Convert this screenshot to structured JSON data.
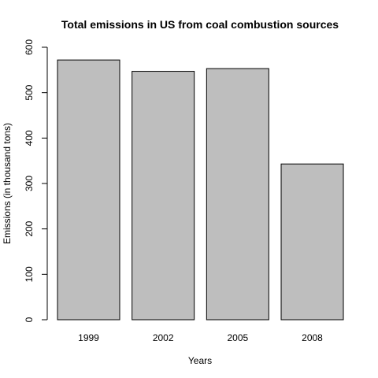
{
  "chart_data": {
    "type": "bar",
    "title": "Total emissions in US from coal combustion sources",
    "xlabel": "Years",
    "ylabel": "Emissions (in thousand tons)",
    "categories": [
      "1999",
      "2002",
      "2005",
      "2008"
    ],
    "values": [
      572,
      547,
      553,
      343
    ],
    "ylim": [
      0,
      600
    ],
    "yticks": [
      0,
      100,
      200,
      300,
      400,
      500,
      600
    ],
    "grid": false,
    "bar_color": "#bebebe"
  }
}
